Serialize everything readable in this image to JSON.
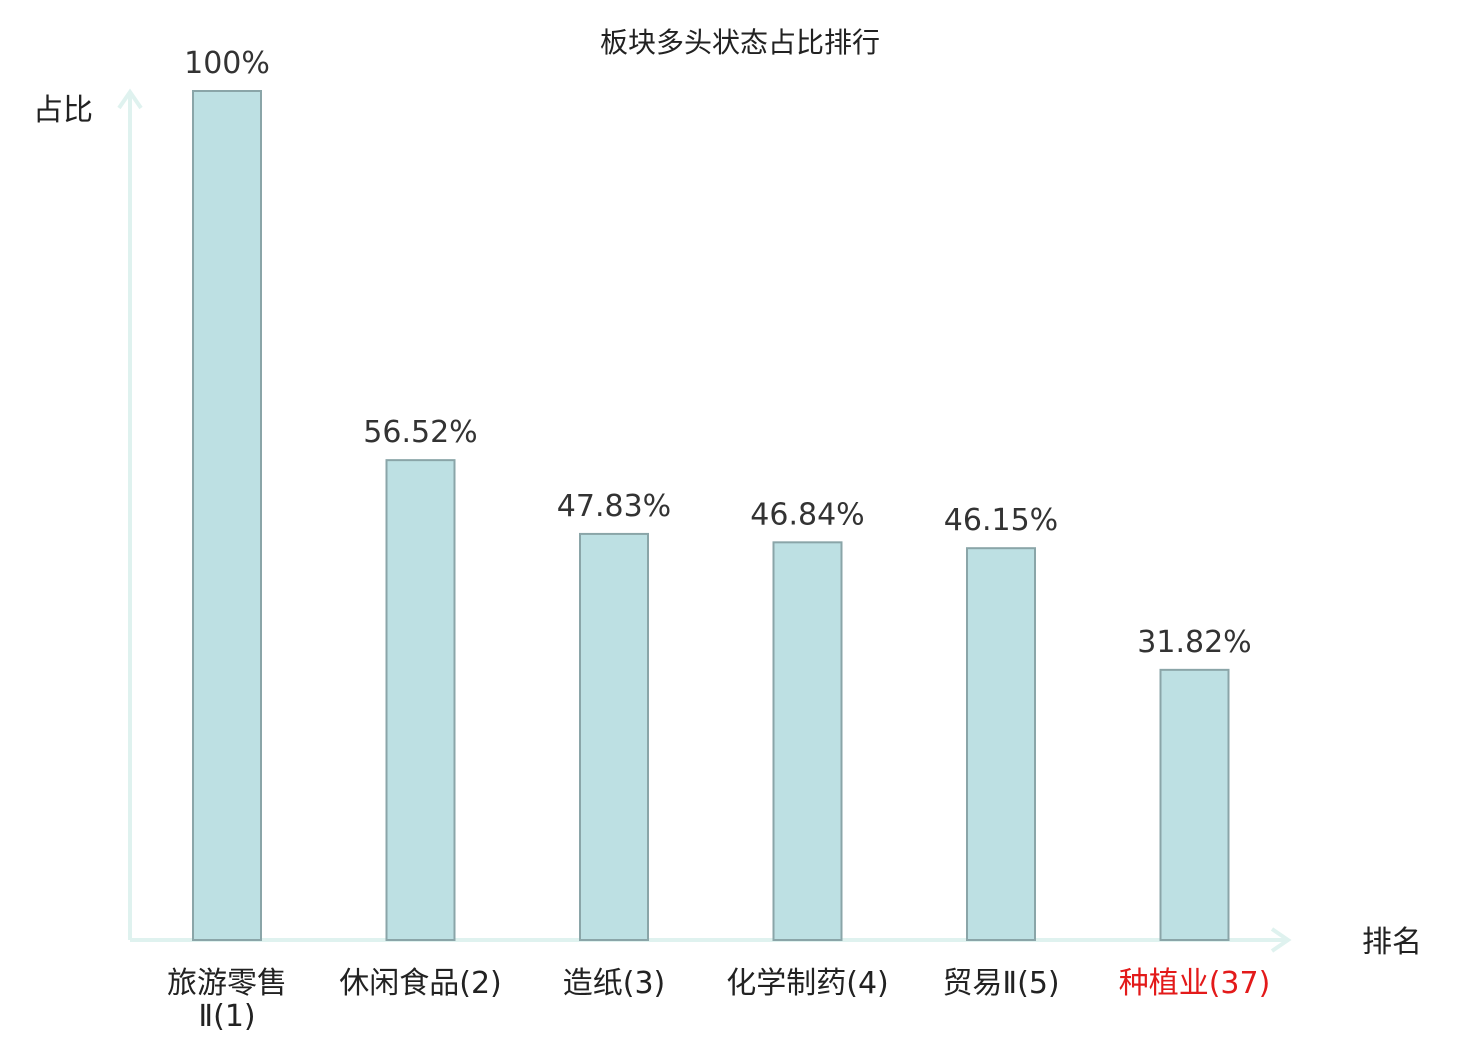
{
  "chart_data": {
    "type": "bar",
    "title": "板块多头状态占比排行",
    "ylabel": "占比",
    "xlabel": "排名",
    "ylim": [
      0,
      100
    ],
    "grid": false,
    "categories": [
      {
        "name": "旅游零售Ⅱ",
        "rank": "(1)"
      },
      {
        "name": "休闲食品",
        "rank": "(2)"
      },
      {
        "name": "造纸",
        "rank": "(3)"
      },
      {
        "name": "化学制药",
        "rank": "(4)"
      },
      {
        "name": "贸易Ⅱ",
        "rank": "(5)"
      },
      {
        "name": "种植业",
        "rank": "(37)"
      }
    ],
    "values": [
      100,
      56.52,
      47.83,
      46.84,
      46.15,
      31.82
    ],
    "value_labels": [
      "100%",
      "56.52%",
      "47.83%",
      "46.84%",
      "46.15%",
      "31.82%"
    ],
    "highlight_index": 5
  },
  "colors": {
    "bar_fill": "#bde0e3",
    "bar_stroke": "#8aa5a8",
    "axis": "#dff2ef",
    "highlight": "#e31a1a",
    "text": "#333333"
  }
}
